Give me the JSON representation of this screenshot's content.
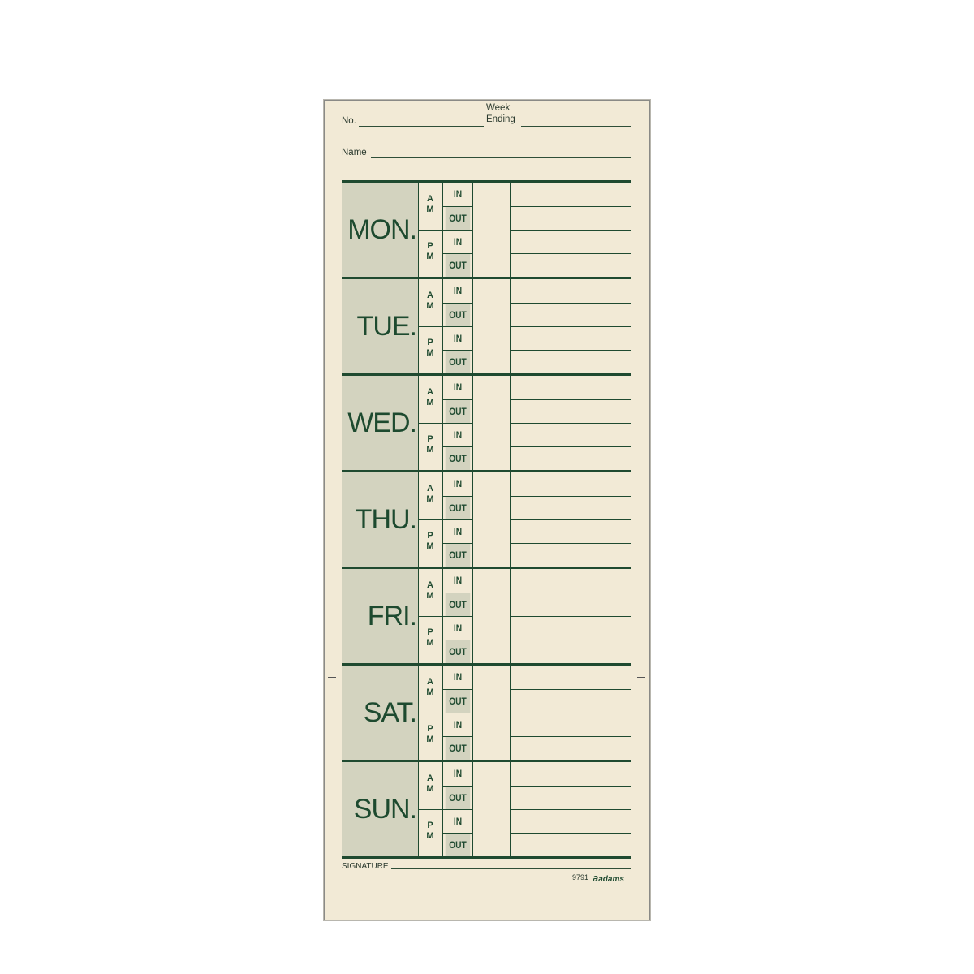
{
  "header": {
    "no_label": "No.",
    "week_label": "Week",
    "ending_label": "Ending",
    "name_label": "Name"
  },
  "days": [
    {
      "name": "MON."
    },
    {
      "name": "TUE."
    },
    {
      "name": "WED."
    },
    {
      "name": "THU."
    },
    {
      "name": "FRI."
    },
    {
      "name": "SAT."
    },
    {
      "name": "SUN."
    }
  ],
  "periods": {
    "am": [
      "A",
      "M"
    ],
    "pm": [
      "P",
      "M"
    ],
    "in": "IN",
    "out": "OUT"
  },
  "footer": {
    "signature_label": "SIGNATURE",
    "form_number": "9791",
    "brand": "adams"
  },
  "colors": {
    "ink": "#1f4a30",
    "paper": "#f2ead6",
    "shade": "#d3d3bf"
  }
}
